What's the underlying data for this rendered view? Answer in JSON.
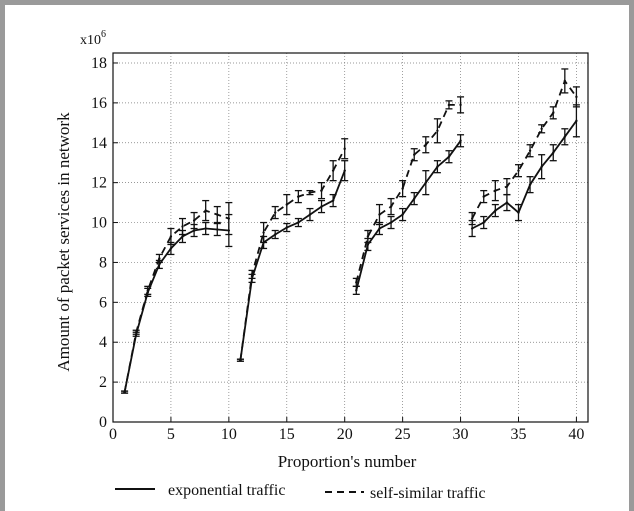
{
  "chart_data": {
    "type": "line",
    "y_multiplier": "x10",
    "y_multiplier_exp": "6",
    "xlabel": "Proportion's number",
    "ylabel": "Amount of packet services in network",
    "xlim": [
      0,
      41
    ],
    "ylim": [
      0,
      18.5
    ],
    "x_ticks": [
      0,
      5,
      10,
      15,
      20,
      25,
      30,
      35,
      40
    ],
    "y_ticks": [
      0,
      2,
      4,
      6,
      8,
      10,
      12,
      14,
      16,
      18
    ],
    "grid": true,
    "legend_position": "bottom",
    "series": [
      {
        "name": "exponential traffic",
        "style": "solid",
        "segments": [
          {
            "x": [
              1,
              2,
              3,
              4,
              5,
              6,
              7,
              8,
              9,
              10
            ],
            "y": [
              1.5,
              4.4,
              6.5,
              7.9,
              8.7,
              9.3,
              9.6,
              9.7,
              9.65,
              9.6
            ],
            "err": [
              0.05,
              0.1,
              0.2,
              0.2,
              0.3,
              0.3,
              0.3,
              0.3,
              0.3,
              0.8
            ]
          },
          {
            "x": [
              11,
              12,
              13,
              14,
              15,
              16,
              17,
              18,
              19,
              20
            ],
            "y": [
              3.1,
              7.2,
              9.0,
              9.4,
              9.75,
              10.0,
              10.4,
              10.8,
              11.1,
              12.6
            ],
            "err": [
              0.05,
              0.2,
              0.3,
              0.2,
              0.2,
              0.2,
              0.3,
              0.3,
              0.3,
              0.5
            ]
          },
          {
            "x": [
              21,
              22,
              23,
              24,
              25,
              26,
              27,
              28,
              29,
              30
            ],
            "y": [
              6.6,
              8.9,
              9.7,
              10.0,
              10.4,
              11.2,
              12.0,
              12.8,
              13.3,
              14.1
            ],
            "err": [
              0.2,
              0.3,
              0.3,
              0.3,
              0.3,
              0.3,
              0.6,
              0.3,
              0.3,
              0.3
            ]
          },
          {
            "x": [
              31,
              32,
              33,
              34,
              35,
              36,
              37,
              38,
              39,
              40
            ],
            "y": [
              9.7,
              10.0,
              10.6,
              11.0,
              10.5,
              11.9,
              12.8,
              13.5,
              14.3,
              15.1
            ],
            "err": [
              0.4,
              0.3,
              0.3,
              0.4,
              0.4,
              0.4,
              0.6,
              0.4,
              0.4,
              0.8
            ]
          }
        ]
      },
      {
        "name": "self-similar traffic",
        "style": "dashed",
        "segments": [
          {
            "x": [
              1,
              2,
              3,
              4,
              5,
              6,
              7,
              8,
              9,
              10
            ],
            "y": [
              1.5,
              4.5,
              6.6,
              8.2,
              9.3,
              9.8,
              10.1,
              10.6,
              10.4,
              10.2
            ],
            "err": [
              0.05,
              0.1,
              0.2,
              0.2,
              0.4,
              0.4,
              0.4,
              0.5,
              0.4,
              0.8
            ]
          },
          {
            "x": [
              11,
              12,
              13,
              14,
              15,
              16,
              17,
              18,
              19,
              20
            ],
            "y": [
              3.1,
              7.4,
              9.5,
              10.5,
              10.9,
              11.3,
              11.5,
              11.6,
              12.6,
              13.7
            ],
            "err": [
              0.05,
              0.2,
              0.5,
              0.3,
              0.5,
              0.3,
              0.1,
              0.4,
              0.5,
              0.5
            ]
          },
          {
            "x": [
              21,
              22,
              23,
              24,
              25,
              26,
              27,
              28,
              29,
              30
            ],
            "y": [
              7.0,
              9.3,
              10.4,
              10.8,
              11.7,
              13.4,
              13.9,
              14.6,
              15.9,
              15.9
            ],
            "err": [
              0.2,
              0.3,
              0.5,
              0.4,
              0.4,
              0.3,
              0.4,
              0.6,
              0.2,
              0.4
            ]
          },
          {
            "x": [
              31,
              32,
              33,
              34,
              35,
              36,
              37,
              38,
              39,
              40
            ],
            "y": [
              10.2,
              11.3,
              11.6,
              11.8,
              12.6,
              13.6,
              14.7,
              15.5,
              17.1,
              16.3
            ],
            "err": [
              0.3,
              0.3,
              0.5,
              0.4,
              0.3,
              0.3,
              0.2,
              0.3,
              0.6,
              0.5
            ]
          }
        ]
      }
    ]
  }
}
